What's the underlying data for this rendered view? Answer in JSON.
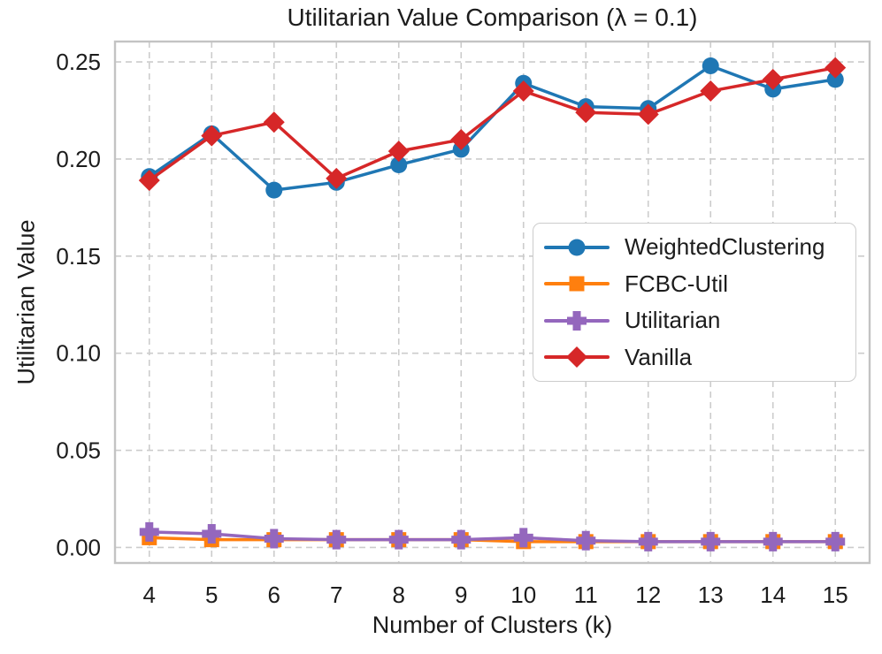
{
  "chart_data": {
    "type": "line",
    "title": "Utilitarian Value Comparison (λ = 0.1)",
    "xlabel": "Number of Clusters (k)",
    "ylabel": "Utilitarian Value",
    "x": [
      4,
      5,
      6,
      7,
      8,
      9,
      10,
      11,
      12,
      13,
      14,
      15
    ],
    "xtick_labels": [
      "4",
      "5",
      "6",
      "7",
      "8",
      "9",
      "10",
      "11",
      "12",
      "13",
      "14",
      "15"
    ],
    "yticks": [
      0.0,
      0.05,
      0.1,
      0.15,
      0.2,
      0.25
    ],
    "ytick_labels": [
      "0.00",
      "0.05",
      "0.10",
      "0.15",
      "0.20",
      "0.25"
    ],
    "xlim": [
      3.45,
      15.55
    ],
    "ylim": [
      -0.008,
      0.2605
    ],
    "grid": {
      "visible": true,
      "style": "dashed",
      "axes": "both"
    },
    "legend_position": "center-right",
    "series": [
      {
        "name": "WeightedClustering",
        "color": "#1f77b4",
        "marker": "circle",
        "values": [
          0.191,
          0.213,
          0.184,
          0.188,
          0.197,
          0.205,
          0.239,
          0.227,
          0.226,
          0.248,
          0.236,
          0.241
        ]
      },
      {
        "name": "FCBC-Util",
        "color": "#ff7f0e",
        "marker": "square",
        "values": [
          0.005,
          0.004,
          0.004,
          0.004,
          0.004,
          0.004,
          0.003,
          0.003,
          0.003,
          0.003,
          0.003,
          0.003
        ]
      },
      {
        "name": "Utilitarian",
        "color": "#9467bd",
        "marker": "plus",
        "values": [
          0.008,
          0.007,
          0.0045,
          0.004,
          0.004,
          0.004,
          0.005,
          0.0035,
          0.003,
          0.003,
          0.003,
          0.003
        ]
      },
      {
        "name": "Vanilla",
        "color": "#d62728",
        "marker": "diamond",
        "values": [
          0.189,
          0.212,
          0.219,
          0.19,
          0.204,
          0.21,
          0.235,
          0.224,
          0.223,
          0.235,
          0.241,
          0.247
        ]
      }
    ]
  },
  "style": {
    "text_color": "#1c1c1c",
    "grid_color": "#cccccc",
    "axes_border_color": "#c3c3c3",
    "legend_border_color": "#cccccc",
    "background": "#ffffff"
  }
}
